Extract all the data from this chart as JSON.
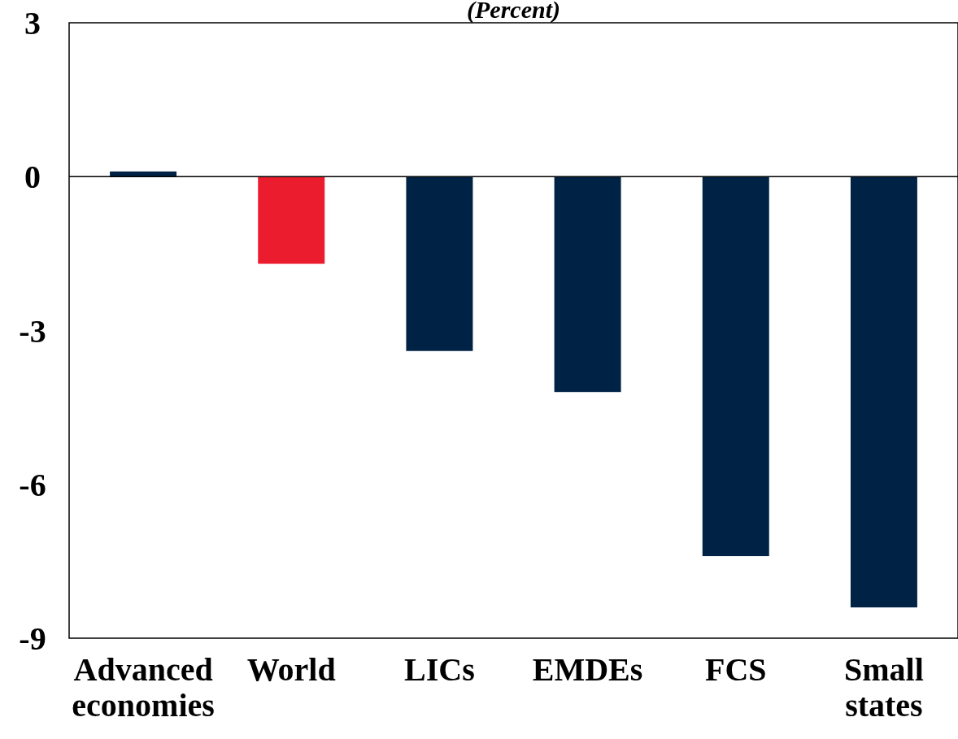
{
  "chart_data": {
    "type": "bar",
    "subtitle": "(Percent)",
    "categories": [
      "Advanced economies",
      "World",
      "LICs",
      "EMDEs",
      "FCS",
      "Small states"
    ],
    "values": [
      0.1,
      -1.7,
      -3.4,
      -4.2,
      -7.4,
      -8.4
    ],
    "colors": [
      "#002345",
      "#eb1c2d",
      "#002345",
      "#002345",
      "#002345",
      "#002345"
    ],
    "ylim": [
      -9,
      3
    ],
    "yticks": [
      -9,
      -6,
      -3,
      0,
      3
    ]
  }
}
